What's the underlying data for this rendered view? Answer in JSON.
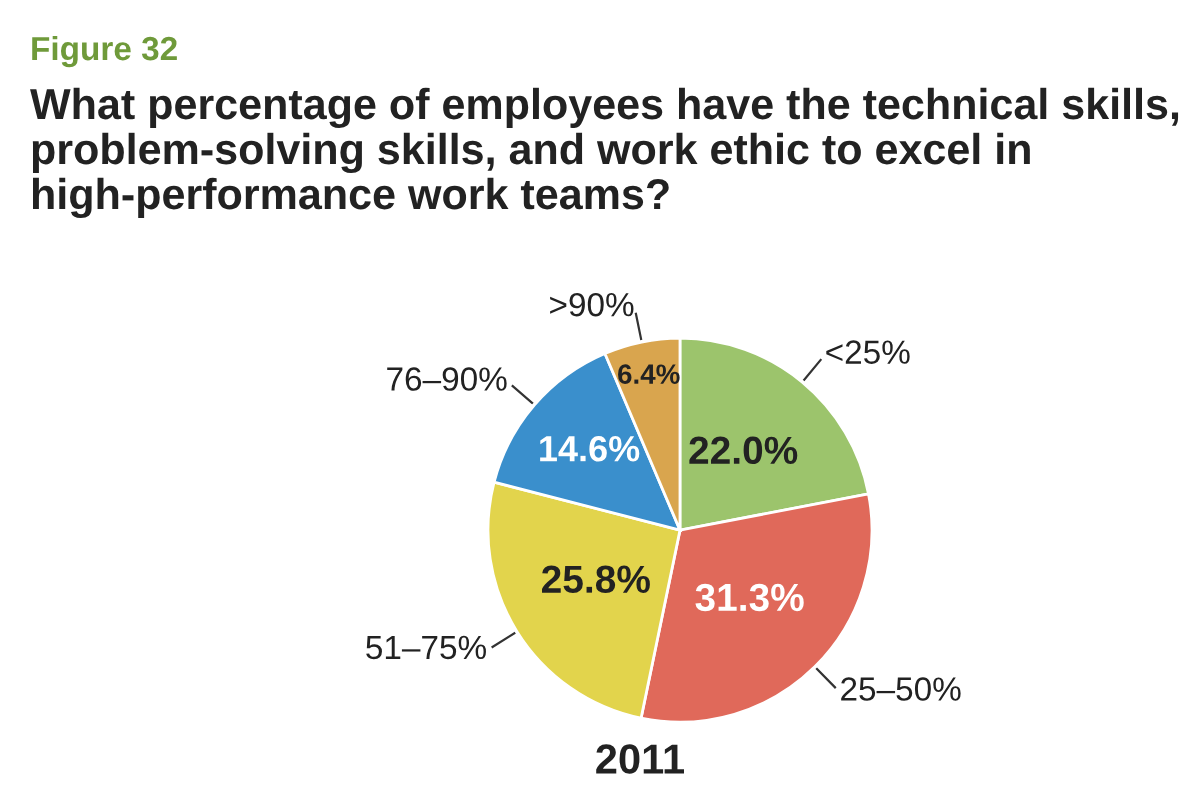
{
  "chart_data": {
    "type": "pie",
    "title": "What percentage of employees have the technical skills, problem-solving skills, and work ethic to excel in high-performance work teams?",
    "annotations": [
      "Figure 32"
    ],
    "xlabel": "2011",
    "categories": [
      "<25%",
      "25–50%",
      "51–75%",
      "76–90%",
      ">90%"
    ],
    "values": [
      22.0,
      31.3,
      25.8,
      14.6,
      6.4
    ],
    "value_labels": [
      "22.0%",
      "31.3%",
      "25.8%",
      "14.6%",
      "6.4%"
    ],
    "colors": [
      "#9cc46c",
      "#e0695a",
      "#e2d44c",
      "#3a8fcc",
      "#d9a54e"
    ],
    "legend": false
  }
}
